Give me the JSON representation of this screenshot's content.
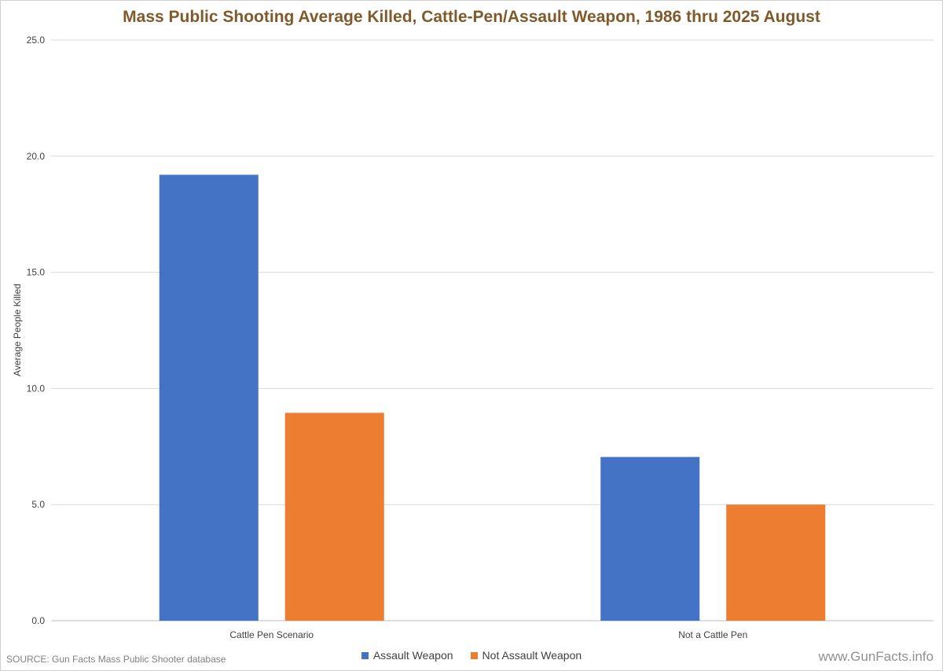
{
  "chart_data": {
    "type": "bar",
    "title": "Mass Public Shooting Average Killed, Cattle-Pen/Assault Weapon, 1986 thru 2025 August",
    "xlabel": "",
    "ylabel": "Average People Killed",
    "categories": [
      "Cattle Pen Scenario",
      "Not a Cattle Pen"
    ],
    "series": [
      {
        "name": "Assault Weapon",
        "values": [
          19.2,
          7.05
        ],
        "color": "#4472c4"
      },
      {
        "name": "Not Assault Weapon",
        "values": [
          8.95,
          5.0
        ],
        "color": "#ed7d31"
      }
    ],
    "ylim": [
      0,
      25
    ],
    "yticks": [
      "0.0",
      "5.0",
      "10.0",
      "15.0",
      "20.0",
      "25.0"
    ],
    "grid": true,
    "legend_position": "bottom"
  },
  "footer": {
    "source": "SOURCE: Gun Facts Mass Public Shooter database",
    "site": "www.GunFacts.info"
  }
}
